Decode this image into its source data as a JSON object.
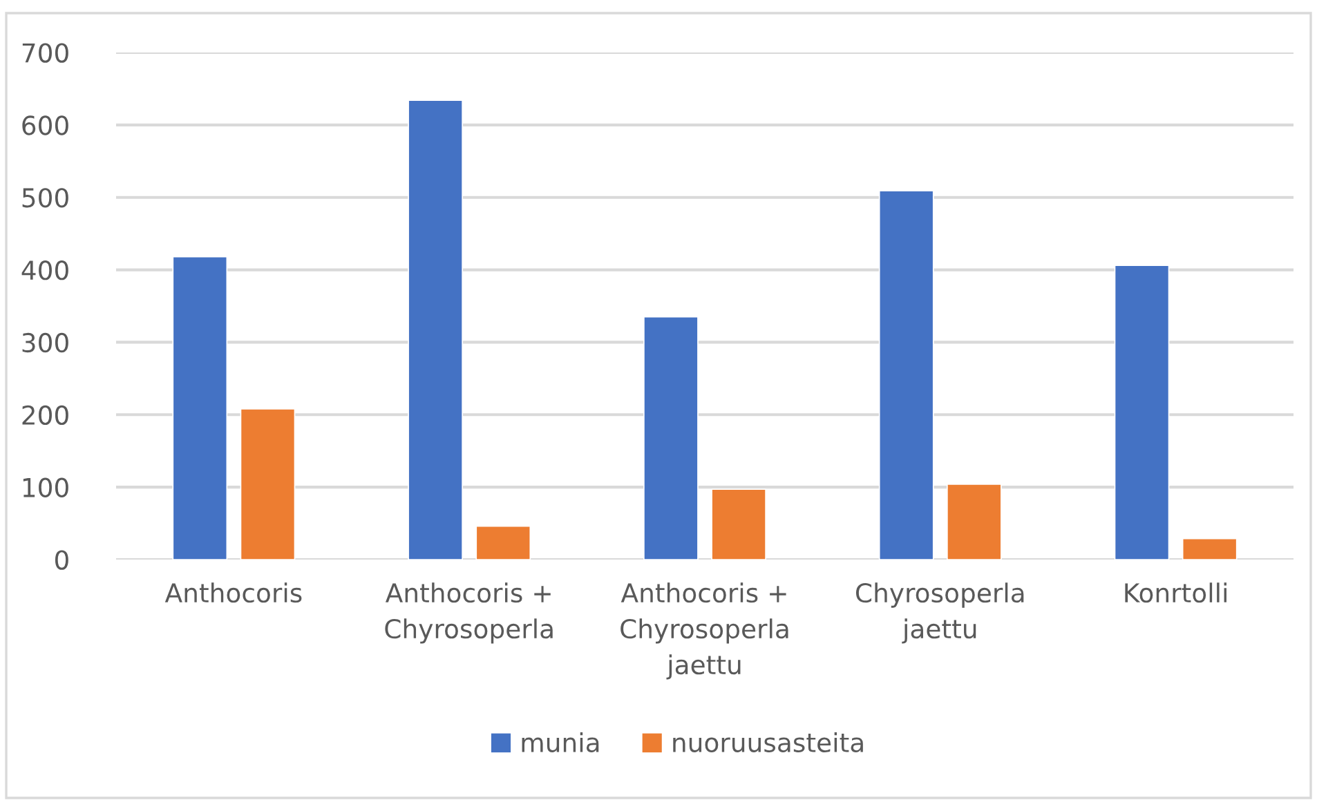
{
  "chart_data": {
    "type": "bar",
    "categories": [
      "Anthocoris",
      "Anthocoris + Chyrosoperla",
      "Anthocoris + Chyrosoperla jaettu",
      "Chyrosoperla jaettu",
      "Konrtolli"
    ],
    "series": [
      {
        "name": "munia",
        "color": "#4472c4",
        "values": [
          418,
          634,
          335,
          509,
          406
        ]
      },
      {
        "name": "nuoruusasteita",
        "color": "#ed7d31",
        "values": [
          208,
          46,
          97,
          104,
          29
        ]
      }
    ],
    "ylim": [
      0,
      700
    ],
    "yticks": [
      0,
      100,
      200,
      300,
      400,
      500,
      600,
      700
    ],
    "grid": "y",
    "legend": "bottom"
  }
}
